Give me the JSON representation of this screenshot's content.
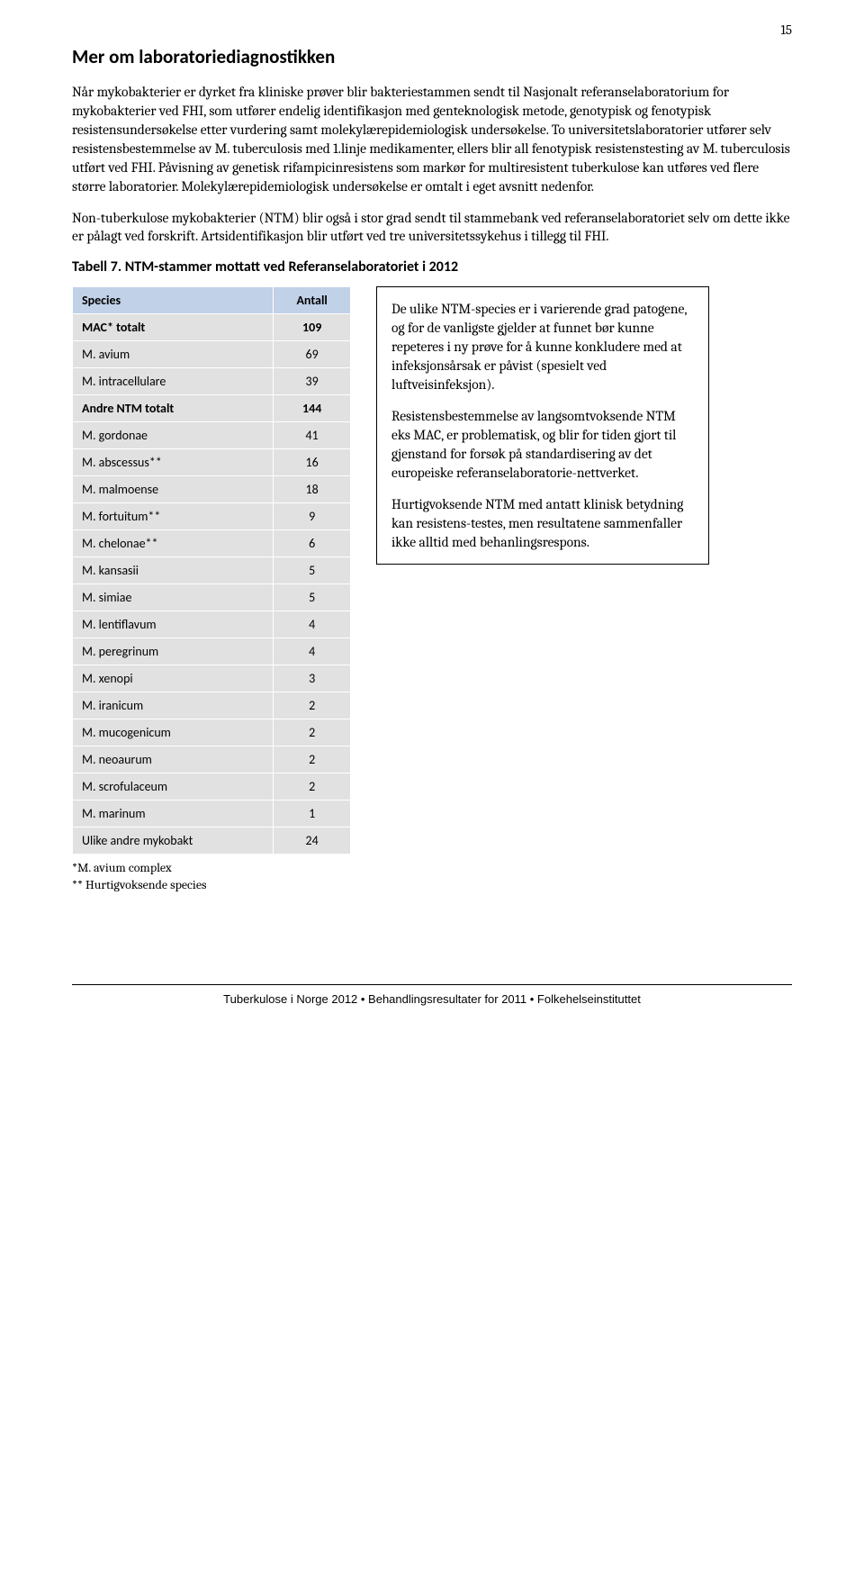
{
  "page_number": "15",
  "heading": "Mer om laboratoriediagnostikken",
  "paragraphs": {
    "p1": "Når mykobakterier er dyrket fra kliniske prøver blir bakteriestammen sendt til Nasjonalt referanselaboratorium for mykobakterier ved FHI, som utfører endelig identifikasjon med genteknologisk metode, genotypisk og fenotypisk resistensundersøkelse etter vurdering samt molekylærepidemiologisk undersøkelse. To universitetslaboratorier utfører selv resistensbestemmelse av M. tuberculosis med 1.linje medikamenter, ellers blir all fenotypisk resistenstesting av M. tuberculosis utført ved FHI. Påvisning av genetisk rifampicinresistens som markør for multiresistent tuberkulose kan utføres ved flere større laboratorier. Molekylærepidemiologisk undersøkelse er omtalt i eget avsnitt nedenfor.",
    "p2": "Non-tuberkulose mykobakterier (NTM) blir også i stor grad sendt til stammebank ved referanselaboratoriet selv om dette ikke er pålagt ved forskrift.  Artsidentifikasjon blir utført ved tre universitetssykehus i tillegg til FHI."
  },
  "table_caption": "Tabell 7.  NTM-stammer mottatt ved Referanselaboratoriet i 2012",
  "table": {
    "header_species": "Species",
    "header_count": "Antall",
    "rows": [
      {
        "label": "MAC* totalt",
        "count": "109",
        "bold": true
      },
      {
        "label": "M. avium",
        "count": "69",
        "bold": false
      },
      {
        "label": "M. intracellulare",
        "count": "39",
        "bold": false
      },
      {
        "label": "Andre NTM totalt",
        "count": "144",
        "bold": true
      },
      {
        "label": "M. gordonae",
        "count": "41",
        "bold": false
      },
      {
        "label": " M. abscessus**",
        "count": "16",
        "bold": false
      },
      {
        "label": "M. malmoense",
        "count": "18",
        "bold": false
      },
      {
        "label": "M. fortuitum**",
        "count": "9",
        "bold": false
      },
      {
        "label": "M. chelonae**",
        "count": "6",
        "bold": false
      },
      {
        "label": "M. kansasii",
        "count": "5",
        "bold": false
      },
      {
        "label": "M. simiae",
        "count": "5",
        "bold": false
      },
      {
        "label": "M. lentiflavum",
        "count": "4",
        "bold": false
      },
      {
        "label": "M. peregrinum",
        "count": "4",
        "bold": false
      },
      {
        "label": "M. xenopi",
        "count": "3",
        "bold": false
      },
      {
        "label": "M. iranicum",
        "count": "2",
        "bold": false
      },
      {
        "label": "M. mucogenicum",
        "count": "2",
        "bold": false
      },
      {
        "label": "M. neoaurum",
        "count": "2",
        "bold": false
      },
      {
        "label": "M. scrofulaceum",
        "count": "2",
        "bold": false
      },
      {
        "label": "M. marinum",
        "count": "1",
        "bold": false
      },
      {
        "label": "Ulike andre mykobakt",
        "count": "24",
        "bold": false
      }
    ]
  },
  "sidebox": {
    "s1": "De ulike NTM-species er i varierende grad patogene, og for de vanligste gjelder at funnet bør kunne repeteres i ny prøve for å kunne konkludere med at infeksjonsårsak er påvist (spesielt ved luftveisinfeksjon).",
    "s2": "Resistensbestemmelse av langsomtvoksende NTM eks MAC, er problematisk, og blir for tiden gjort til gjenstand for forsøk på standardisering av det europeiske referanselaboratorie-nettverket.",
    "s3": "Hurtigvoksende NTM med antatt klinisk betydning kan resistens-testes, men resultatene sammenfaller ikke alltid med behanlingsrespons."
  },
  "footnotes": {
    "f1": "*M. avium complex",
    "f2": "** Hurtigvoksende species"
  },
  "footer": "Tuberkulose i Norge 2012 • Behandlingsresultater for 2011 • Folkehelseinstituttet"
}
